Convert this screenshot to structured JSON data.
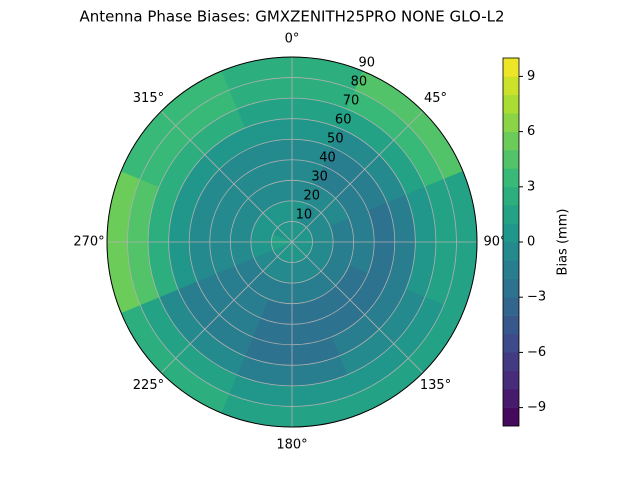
{
  "chart_data": {
    "type": "polar-contour",
    "title": "Antenna Phase Biases: GMXZENITH25PRO  NONE GLO-L2",
    "ylim": [
      0,
      90
    ],
    "yticks": [
      10,
      20,
      30,
      40,
      50,
      60,
      70,
      80,
      90
    ],
    "xticks": [
      {
        "value": 0,
        "label": "0°"
      },
      {
        "value": 45,
        "label": "45°"
      },
      {
        "value": 90,
        "label": "90°"
      },
      {
        "value": 135,
        "label": "135°"
      },
      {
        "value": 180,
        "label": "180°"
      },
      {
        "value": 225,
        "label": "225°"
      },
      {
        "value": 270,
        "label": "270°"
      },
      {
        "value": 315,
        "label": "315°"
      }
    ],
    "grid": true,
    "field": {
      "azimuths": [
        0,
        45,
        90,
        135,
        180,
        225,
        270,
        315
      ],
      "zenith_edges": [
        0,
        10,
        20,
        30,
        40,
        50,
        60,
        70,
        80,
        90
      ],
      "values": [
        [
          0,
          0,
          -1,
          -1,
          -1,
          0,
          1,
          2,
          2
        ],
        [
          0,
          -1,
          -1,
          -2,
          -2,
          -1,
          1,
          3,
          4
        ],
        [
          0,
          -1,
          -2,
          -2,
          -3,
          -2,
          0,
          1,
          1
        ],
        [
          0,
          -1,
          -2,
          -3,
          -3,
          -2,
          -1,
          0,
          1
        ],
        [
          0,
          -1,
          -2,
          -3,
          -3,
          -3,
          -2,
          0,
          1
        ],
        [
          0,
          -1,
          -2,
          -2,
          -2,
          -2,
          -1,
          1,
          2
        ],
        [
          1,
          0,
          -1,
          -1,
          -1,
          0,
          2,
          4,
          5
        ],
        [
          0,
          0,
          -1,
          -1,
          -1,
          0,
          2,
          3,
          3
        ]
      ]
    },
    "colorbar": {
      "label": "Bias (mm)",
      "clim": [
        -10,
        10
      ],
      "levels": [
        -10,
        -9,
        -8,
        -7,
        -6,
        -5,
        -4,
        -3,
        -2,
        -1,
        0,
        1,
        2,
        3,
        4,
        5,
        6,
        7,
        8,
        9,
        10
      ],
      "ticks": [
        {
          "value": -9,
          "label": "−9"
        },
        {
          "value": -6,
          "label": "−6"
        },
        {
          "value": -3,
          "label": "−3"
        },
        0,
        3,
        6,
        9
      ]
    }
  }
}
